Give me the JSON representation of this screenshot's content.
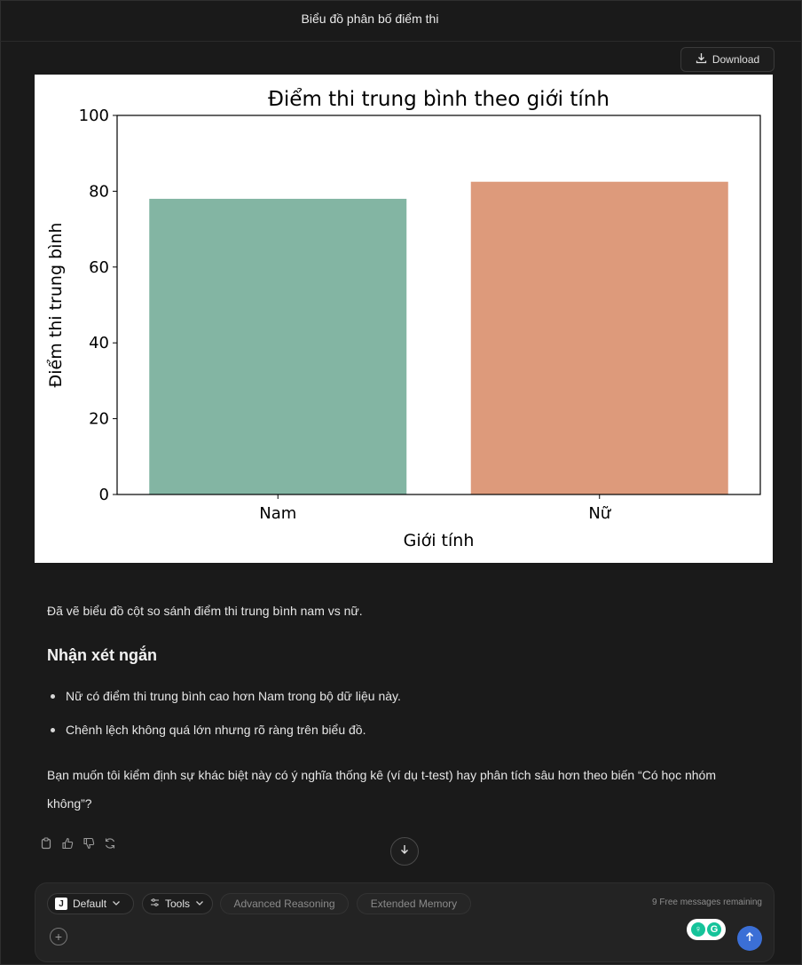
{
  "window": {
    "title": "Biểu đồ phân bố điểm thi"
  },
  "download": {
    "label": "Download"
  },
  "chart_data": {
    "type": "bar",
    "title": "Điểm thi trung bình theo giới tính",
    "xlabel": "Giới tính",
    "ylabel": "Điểm thi trung bình",
    "categories": [
      "Nam",
      "Nữ"
    ],
    "values": [
      78,
      82.5
    ],
    "ylim": [
      0,
      100
    ],
    "yticks": [
      0,
      20,
      40,
      60,
      80,
      100
    ],
    "colors": [
      "#83b5a3",
      "#dd9a7b"
    ],
    "grid": false,
    "legend": "none"
  },
  "message": {
    "intro": "Đã vẽ biểu đồ cột so sánh điểm thi trung bình nam vs nữ.",
    "heading": "Nhận xét ngắn",
    "bullets": [
      "Nữ có điểm thi trung bình cao hơn Nam trong bộ dữ liệu này.",
      "Chênh lệch không quá lớn nhưng rõ ràng trên biểu đồ."
    ],
    "followup": "Bạn muốn tôi kiểm định sự khác biệt này có ý nghĩa thống kê (ví dụ t-test) hay phân tích sâu hơn theo biến “Có học nhóm không”?"
  },
  "composer": {
    "model_badge": "J",
    "model_label": "Default",
    "tools_label": "Tools",
    "advanced_label": "Advanced Reasoning",
    "memory_label": "Extended Memory",
    "free_remaining": "9 Free messages remaining"
  }
}
